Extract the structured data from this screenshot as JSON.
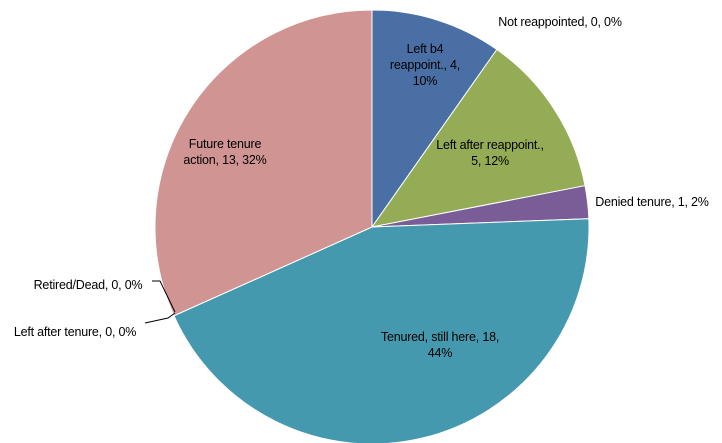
{
  "chart_data": {
    "type": "pie",
    "values": [
      4,
      0,
      5,
      1,
      18,
      0,
      0,
      13
    ],
    "value_labels": [
      "Left b4 reappoint., 4, 10%",
      "Not reappointed, 0, 0%",
      "Left after reappoint., 5, 12%",
      "Denied tenure, 1, 2%",
      "Tenured, still here, 18, 44%",
      "Left after tenure, 0, 0%",
      "Retired/Dead, 0, 0%",
      "Future tenure action, 13, 32%"
    ],
    "colors": [
      "#4a6fa5",
      "#b84c4a",
      "#93ac55",
      "#7a5c97",
      "#4599af",
      "#e38e3f",
      "#a6bbd9",
      "#d09593"
    ]
  }
}
